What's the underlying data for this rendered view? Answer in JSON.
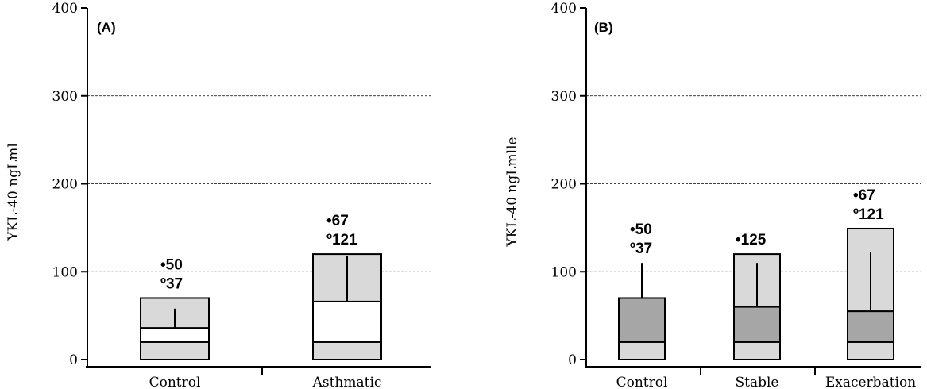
{
  "chart_data": [
    {
      "panel": "(A)",
      "type": "bar",
      "ylabel": "YKL-40 ngLml",
      "ylim": [
        0,
        400
      ],
      "yticks": [
        0,
        100,
        200,
        300,
        400
      ],
      "grid": true,
      "colors": {
        "light": "#d9d9d9",
        "white": "#ffffff",
        "dark": "#a6a6a6"
      },
      "categories": [
        {
          "label": "Control",
          "segments": [
            {
              "from": 0,
              "to": 20,
              "fill": "light"
            },
            {
              "from": 20,
              "to": 36,
              "fill": "white"
            },
            {
              "from": 36,
              "to": 70,
              "fill": "light"
            }
          ],
          "whisker": [
            36,
            58
          ],
          "annotations": [
            "•50",
            "º37"
          ]
        },
        {
          "label": "Asthmatic",
          "segments": [
            {
              "from": 0,
              "to": 20,
              "fill": "light"
            },
            {
              "from": 20,
              "to": 66,
              "fill": "white"
            },
            {
              "from": 66,
              "to": 120,
              "fill": "light"
            }
          ],
          "whisker": [
            66,
            118
          ],
          "annotations": [
            "•67",
            "º121"
          ]
        }
      ]
    },
    {
      "panel": "(B)",
      "type": "bar",
      "ylabel": "YKL-40 ngLmlle",
      "ylim": [
        0,
        400
      ],
      "yticks": [
        0,
        100,
        200,
        300,
        400
      ],
      "grid": true,
      "colors": {
        "light": "#d9d9d9",
        "white": "#ffffff",
        "dark": "#a6a6a6"
      },
      "categories": [
        {
          "label": "Control",
          "segments": [
            {
              "from": 0,
              "to": 20,
              "fill": "light"
            },
            {
              "from": 20,
              "to": 70,
              "fill": "dark"
            }
          ],
          "whisker": [
            70,
            110
          ],
          "annotations": [
            "•50",
            "º37"
          ]
        },
        {
          "label": "Stable",
          "segments": [
            {
              "from": 0,
              "to": 20,
              "fill": "light"
            },
            {
              "from": 20,
              "to": 60,
              "fill": "dark"
            },
            {
              "from": 60,
              "to": 120,
              "fill": "light"
            }
          ],
          "whisker": [
            60,
            110
          ],
          "annotations": [
            "•125"
          ]
        },
        {
          "label": "Exacerbation",
          "segments": [
            {
              "from": 0,
              "to": 20,
              "fill": "light"
            },
            {
              "from": 20,
              "to": 55,
              "fill": "dark"
            },
            {
              "from": 55,
              "to": 149,
              "fill": "light"
            }
          ],
          "whisker": [
            55,
            122
          ],
          "annotations": [
            "•67",
            "º121"
          ]
        }
      ]
    }
  ]
}
